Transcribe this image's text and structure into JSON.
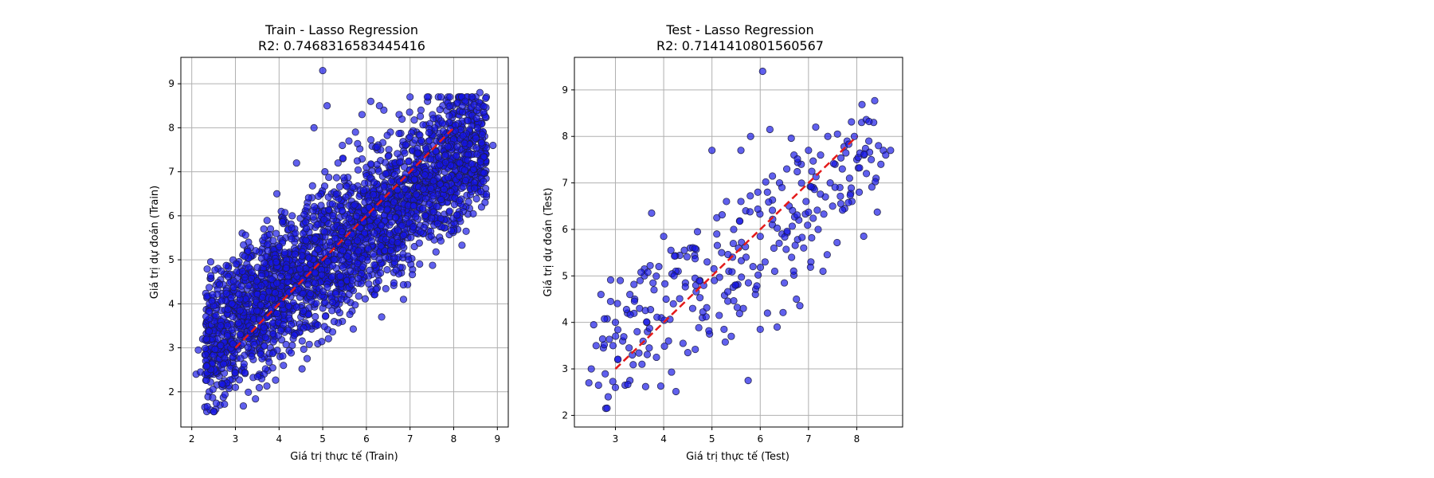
{
  "chart_data": [
    {
      "type": "scatter",
      "title_line1": "Train - Lasso Regression",
      "title_line2": "R2: 0.7468316583445416",
      "xlabel": "Giá trị thực tế (Train)",
      "ylabel": "Giá trị dự đoán (Train)",
      "xlim": [
        1.75,
        9.25
      ],
      "ylim": [
        1.2,
        9.6
      ],
      "xticks": [
        2,
        3,
        4,
        5,
        6,
        7,
        8,
        9
      ],
      "yticks": [
        2,
        3,
        4,
        5,
        6,
        7,
        8,
        9
      ],
      "grid": true,
      "point_color": "#1414e6",
      "ideal_line": {
        "x": [
          3,
          8
        ],
        "y": [
          3,
          8
        ],
        "color": "#e41a1a",
        "style": "dashed"
      },
      "points": [
        [
          2.1,
          2.4
        ],
        [
          2.15,
          2.95
        ],
        [
          2.2,
          2.45
        ],
        [
          2.25,
          3.2
        ],
        [
          2.3,
          1.65
        ],
        [
          2.4,
          2.0
        ],
        [
          2.45,
          3.25
        ],
        [
          2.5,
          2.4
        ],
        [
          2.55,
          1.6
        ],
        [
          2.6,
          2.7
        ],
        [
          2.6,
          3.6
        ],
        [
          2.65,
          1.7
        ],
        [
          2.7,
          4.1
        ],
        [
          2.75,
          3.0
        ],
        [
          2.8,
          2.2
        ],
        [
          2.85,
          3.4
        ],
        [
          2.9,
          4.5
        ],
        [
          2.95,
          2.6
        ],
        [
          3.0,
          3.8
        ],
        [
          3.0,
          2.1
        ],
        [
          3.05,
          4.9
        ],
        [
          3.1,
          3.2
        ],
        [
          3.15,
          2.5
        ],
        [
          3.2,
          4.2
        ],
        [
          3.25,
          3.6
        ],
        [
          3.3,
          2.9
        ],
        [
          3.35,
          4.6
        ],
        [
          3.4,
          5.1
        ],
        [
          3.45,
          3.3
        ],
        [
          3.5,
          3.9
        ],
        [
          3.55,
          2.4
        ],
        [
          3.6,
          4.4
        ],
        [
          3.65,
          5.7
        ],
        [
          3.7,
          3.5
        ],
        [
          3.75,
          4.8
        ],
        [
          3.8,
          3.0
        ],
        [
          3.85,
          5.3
        ],
        [
          3.9,
          4.1
        ],
        [
          3.95,
          6.5
        ],
        [
          4.0,
          3.6
        ],
        [
          4.05,
          4.7
        ],
        [
          4.1,
          2.6
        ],
        [
          4.15,
          5.5
        ],
        [
          4.2,
          4.3
        ],
        [
          4.25,
          3.9
        ],
        [
          4.3,
          6.0
        ],
        [
          4.35,
          5.0
        ],
        [
          4.4,
          7.2
        ],
        [
          4.45,
          4.5
        ],
        [
          4.5,
          3.7
        ],
        [
          4.55,
          5.8
        ],
        [
          4.6,
          4.2
        ],
        [
          4.65,
          6.3
        ],
        [
          4.7,
          5.3
        ],
        [
          4.75,
          3.5
        ],
        [
          4.8,
          8.0
        ],
        [
          4.85,
          4.8
        ],
        [
          4.9,
          6.1
        ],
        [
          4.95,
          5.5
        ],
        [
          5.0,
          9.3
        ],
        [
          5.0,
          3.9
        ],
        [
          5.05,
          7.0
        ],
        [
          5.1,
          8.5
        ],
        [
          5.15,
          4.6
        ],
        [
          5.2,
          6.5
        ],
        [
          5.25,
          5.1
        ],
        [
          5.3,
          4.0
        ],
        [
          5.35,
          7.2
        ],
        [
          5.4,
          5.7
        ],
        [
          5.45,
          3.6
        ],
        [
          5.5,
          6.8
        ],
        [
          5.55,
          4.9
        ],
        [
          5.6,
          7.7
        ],
        [
          5.65,
          5.4
        ],
        [
          5.7,
          4.3
        ],
        [
          5.75,
          7.9
        ],
        [
          5.8,
          6.2
        ],
        [
          5.85,
          5.0
        ],
        [
          5.9,
          8.3
        ],
        [
          5.95,
          4.6
        ],
        [
          6.0,
          7.1
        ],
        [
          6.05,
          5.6
        ],
        [
          6.1,
          8.6
        ],
        [
          6.15,
          6.4
        ],
        [
          6.2,
          4.8
        ],
        [
          6.25,
          7.5
        ],
        [
          6.3,
          5.9
        ],
        [
          6.35,
          3.7
        ],
        [
          6.4,
          8.4
        ],
        [
          6.45,
          6.7
        ],
        [
          6.5,
          5.2
        ],
        [
          6.55,
          7.9
        ],
        [
          6.6,
          4.9
        ],
        [
          6.65,
          7.2
        ],
        [
          6.7,
          5.7
        ],
        [
          6.75,
          8.3
        ],
        [
          6.8,
          6.4
        ],
        [
          6.85,
          4.1
        ],
        [
          6.9,
          7.6
        ],
        [
          6.95,
          5.5
        ],
        [
          7.0,
          8.7
        ],
        [
          7.05,
          6.8
        ],
        [
          7.1,
          5.3
        ],
        [
          7.15,
          7.9
        ],
        [
          7.2,
          6.2
        ],
        [
          7.25,
          8.4
        ],
        [
          7.3,
          7.1
        ],
        [
          7.35,
          5.8
        ],
        [
          7.4,
          8.6
        ],
        [
          7.45,
          6.6
        ],
        [
          7.5,
          7.8
        ],
        [
          7.55,
          6.1
        ],
        [
          7.6,
          8.2
        ],
        [
          7.65,
          7.0
        ],
        [
          7.7,
          6.4
        ],
        [
          7.75,
          8.5
        ],
        [
          7.8,
          7.4
        ],
        [
          7.85,
          6.8
        ],
        [
          7.9,
          8.1
        ],
        [
          7.95,
          7.2
        ],
        [
          8.0,
          7.8
        ],
        [
          8.05,
          6.9
        ],
        [
          8.1,
          8.3
        ],
        [
          8.15,
          7.5
        ],
        [
          8.2,
          8.0
        ],
        [
          8.25,
          7.1
        ],
        [
          8.3,
          8.4
        ],
        [
          8.35,
          7.7
        ],
        [
          8.4,
          8.2
        ],
        [
          8.45,
          7.4
        ],
        [
          8.5,
          8.6
        ],
        [
          8.55,
          7.9
        ],
        [
          8.6,
          8.8
        ],
        [
          8.65,
          7.6
        ],
        [
          8.7,
          8.3
        ],
        [
          8.9,
          7.6
        ],
        [
          3.3,
          5.4
        ],
        [
          4.05,
          6.1
        ],
        [
          5.45,
          7.6
        ],
        [
          6.3,
          8.5
        ]
      ],
      "density_n": 2600,
      "density_seed": 12345
    },
    {
      "type": "scatter",
      "title_line1": "Test - Lasso Regression",
      "title_line2": "R2: 0.7141410801560567",
      "xlabel": "Giá trị thực tế (Test)",
      "ylabel": "Giá trị dự đoán (Test)",
      "xlim": [
        2.15,
        8.95
      ],
      "ylim": [
        1.75,
        9.7
      ],
      "xticks": [
        3,
        4,
        5,
        6,
        7,
        8
      ],
      "yticks": [
        2,
        3,
        4,
        5,
        6,
        7,
        8,
        9
      ],
      "grid": true,
      "point_color": "#1414e6",
      "ideal_line": {
        "x": [
          3,
          8
        ],
        "y": [
          3,
          8
        ],
        "color": "#e41a1a",
        "style": "dashed"
      },
      "points": [
        [
          2.45,
          2.7
        ],
        [
          2.5,
          3.0
        ],
        [
          2.55,
          3.95
        ],
        [
          2.6,
          3.5
        ],
        [
          2.65,
          2.65
        ],
        [
          2.7,
          4.6
        ],
        [
          2.75,
          3.45
        ],
        [
          2.8,
          2.15
        ],
        [
          2.85,
          2.4
        ],
        [
          2.9,
          4.45
        ],
        [
          2.95,
          3.5
        ],
        [
          3.0,
          2.6
        ],
        [
          3.0,
          4.0
        ],
        [
          3.05,
          3.2
        ],
        [
          3.1,
          4.9
        ],
        [
          3.15,
          3.6
        ],
        [
          3.2,
          2.65
        ],
        [
          3.25,
          4.2
        ],
        [
          3.3,
          2.75
        ],
        [
          3.35,
          3.3
        ],
        [
          3.4,
          4.5
        ],
        [
          3.45,
          3.8
        ],
        [
          3.5,
          4.3
        ],
        [
          3.55,
          3.1
        ],
        [
          3.6,
          5.0
        ],
        [
          3.65,
          4.0
        ],
        [
          3.7,
          3.45
        ],
        [
          3.75,
          6.35
        ],
        [
          3.8,
          4.7
        ],
        [
          3.85,
          3.25
        ],
        [
          3.9,
          5.2
        ],
        [
          3.95,
          4.1
        ],
        [
          4.0,
          5.85
        ],
        [
          4.05,
          4.5
        ],
        [
          4.1,
          3.6
        ],
        [
          4.15,
          5.55
        ],
        [
          4.2,
          4.4
        ],
        [
          4.3,
          5.1
        ],
        [
          4.4,
          3.55
        ],
        [
          4.45,
          4.85
        ],
        [
          4.5,
          3.35
        ],
        [
          4.55,
          5.6
        ],
        [
          4.6,
          4.3
        ],
        [
          4.7,
          5.95
        ],
        [
          4.75,
          4.9
        ],
        [
          4.8,
          4.1
        ],
        [
          4.9,
          5.3
        ],
        [
          4.95,
          3.75
        ],
        [
          5.0,
          7.7
        ],
        [
          5.05,
          4.9
        ],
        [
          5.1,
          6.25
        ],
        [
          5.15,
          4.15
        ],
        [
          5.2,
          5.5
        ],
        [
          5.25,
          3.85
        ],
        [
          5.3,
          6.6
        ],
        [
          5.35,
          5.1
        ],
        [
          5.4,
          3.7
        ],
        [
          5.45,
          6.0
        ],
        [
          5.5,
          4.8
        ],
        [
          5.55,
          5.6
        ],
        [
          5.6,
          7.7
        ],
        [
          5.65,
          4.3
        ],
        [
          5.7,
          6.4
        ],
        [
          5.75,
          2.75
        ],
        [
          5.8,
          8.0
        ],
        [
          5.85,
          5.2
        ],
        [
          5.9,
          4.6
        ],
        [
          5.95,
          6.8
        ],
        [
          6.0,
          3.85
        ],
        [
          6.05,
          9.4
        ],
        [
          6.1,
          5.3
        ],
        [
          6.15,
          4.2
        ],
        [
          6.2,
          8.15
        ],
        [
          6.25,
          6.1
        ],
        [
          6.3,
          5.1
        ],
        [
          6.35,
          3.9
        ],
        [
          6.4,
          7.0
        ],
        [
          6.45,
          5.9
        ],
        [
          6.5,
          4.85
        ],
        [
          6.55,
          7.3
        ],
        [
          6.6,
          6.5
        ],
        [
          6.65,
          5.4
        ],
        [
          6.7,
          7.6
        ],
        [
          6.75,
          4.5
        ],
        [
          6.8,
          6.2
        ],
        [
          6.85,
          7.4
        ],
        [
          6.9,
          5.6
        ],
        [
          6.95,
          6.6
        ],
        [
          7.0,
          7.7
        ],
        [
          7.05,
          5.3
        ],
        [
          7.1,
          6.9
        ],
        [
          7.15,
          8.2
        ],
        [
          7.2,
          6.0
        ],
        [
          7.25,
          7.6
        ],
        [
          7.3,
          5.1
        ],
        [
          7.35,
          6.7
        ],
        [
          7.4,
          8.0
        ],
        [
          7.45,
          7.0
        ],
        [
          7.5,
          6.5
        ],
        [
          7.55,
          7.4
        ],
        [
          7.6,
          8.05
        ],
        [
          7.65,
          6.9
        ],
        [
          7.7,
          7.3
        ],
        [
          7.75,
          6.45
        ],
        [
          7.8,
          7.9
        ],
        [
          7.85,
          7.1
        ],
        [
          7.9,
          6.6
        ],
        [
          7.95,
          8.0
        ],
        [
          8.0,
          7.5
        ],
        [
          8.05,
          6.8
        ],
        [
          8.1,
          8.3
        ],
        [
          8.15,
          7.6
        ],
        [
          8.2,
          7.2
        ],
        [
          8.25,
          7.9
        ],
        [
          8.3,
          7.5
        ],
        [
          8.35,
          8.3
        ],
        [
          8.4,
          7.1
        ],
        [
          8.45,
          7.8
        ],
        [
          8.5,
          7.4
        ],
        [
          8.55,
          7.7
        ],
        [
          8.6,
          7.6
        ],
        [
          8.7,
          7.7
        ],
        [
          3.3,
          4.6
        ],
        [
          3.6,
          5.15
        ],
        [
          4.25,
          5.1
        ],
        [
          4.65,
          4.95
        ],
        [
          5.1,
          5.9
        ],
        [
          5.6,
          6.6
        ],
        [
          6.0,
          5.85
        ],
        [
          6.45,
          6.9
        ]
      ],
      "density_n": 180,
      "density_seed": 777
    }
  ]
}
